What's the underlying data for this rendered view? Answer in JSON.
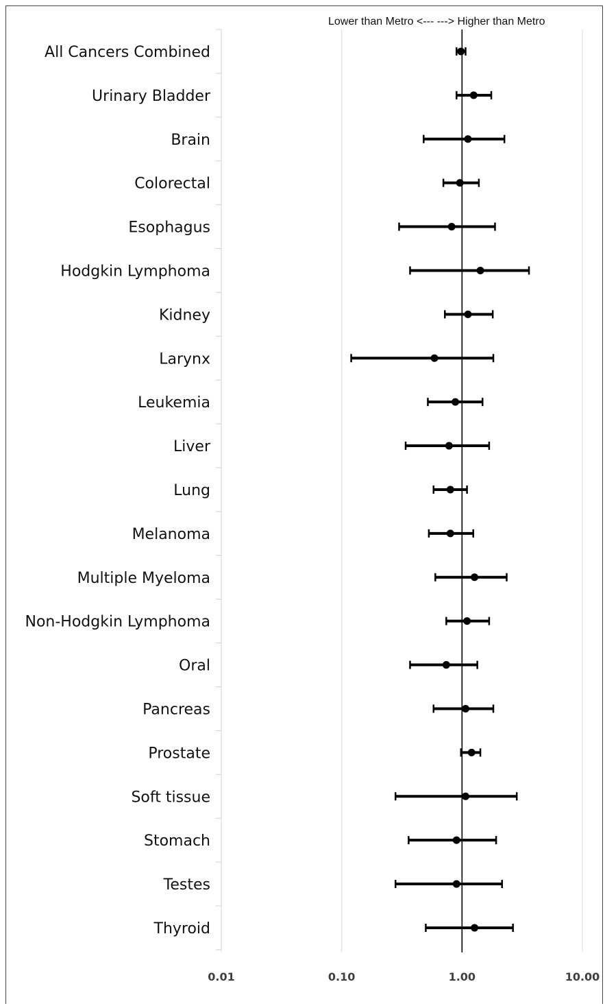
{
  "chart_data": {
    "type": "forest",
    "x_scale": "log",
    "xlim": [
      0.01,
      10
    ],
    "x_ticks": [
      0.01,
      0.1,
      1,
      10
    ],
    "x_tick_labels": [
      "0.01",
      "0.10",
      "1.00",
      "10.00"
    ],
    "reference_line": 1,
    "grid": "vertical major gridlines",
    "annotation": "Lower than Metro <---  ---> Higher than Metro",
    "categories": [
      "All Cancers Combined",
      "Urinary Bladder",
      "Brain",
      "Colorectal",
      "Esophagus",
      "Hodgkin Lymphoma",
      "Kidney",
      "Larynx",
      "Leukemia",
      "Liver",
      "Lung",
      "Melanoma",
      "Multiple Myeloma",
      "Non-Hodgkin Lymphoma",
      "Oral",
      "Pancreas",
      "Prostate",
      "Soft tissue",
      "Stomach",
      "Testes",
      "Thyroid"
    ],
    "estimate": [
      0.98,
      1.25,
      1.12,
      0.96,
      0.82,
      1.42,
      1.12,
      0.59,
      0.88,
      0.78,
      0.8,
      0.8,
      1.27,
      1.1,
      0.74,
      1.07,
      1.2,
      1.07,
      0.9,
      0.9,
      1.27
    ],
    "lower": [
      0.9,
      0.9,
      0.48,
      0.7,
      0.3,
      0.37,
      0.72,
      0.12,
      0.52,
      0.34,
      0.58,
      0.53,
      0.6,
      0.74,
      0.37,
      0.58,
      0.98,
      0.28,
      0.36,
      0.28,
      0.5
    ],
    "upper": [
      1.07,
      1.75,
      2.25,
      1.38,
      1.88,
      3.6,
      1.8,
      1.82,
      1.48,
      1.68,
      1.1,
      1.24,
      2.35,
      1.68,
      1.34,
      1.82,
      1.42,
      2.85,
      1.92,
      2.15,
      2.65
    ],
    "colors": {
      "marker": "#000000",
      "line": "#000000",
      "grid": "#d9d9d9",
      "cap_accent": "#c55a11"
    }
  }
}
